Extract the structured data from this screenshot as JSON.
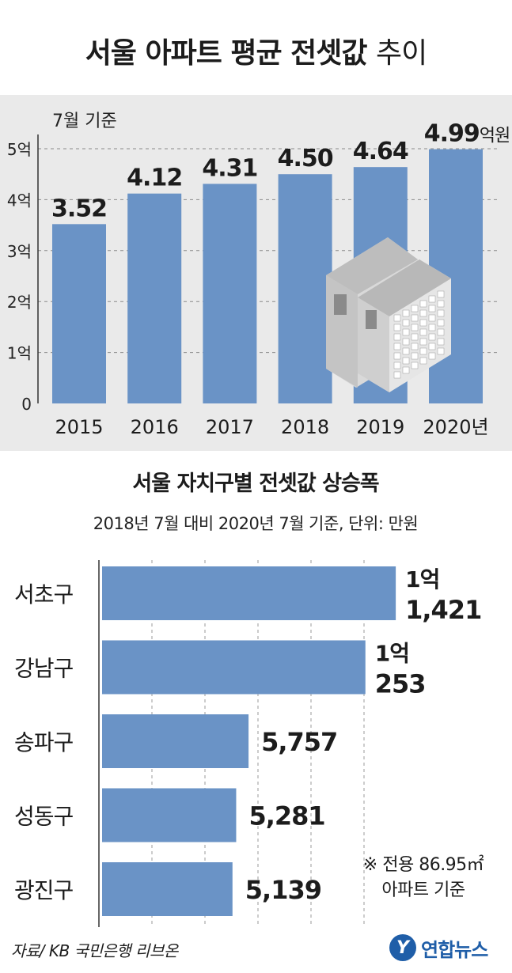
{
  "title": {
    "main": "서울 아파트 평균 전셋값",
    "suffix": "추이"
  },
  "chart_data": [
    {
      "type": "bar",
      "note": "7월 기준",
      "categories": [
        "2015",
        "2016",
        "2017",
        "2018",
        "2019",
        "2020년"
      ],
      "values": [
        3.52,
        4.12,
        4.31,
        4.5,
        4.64,
        4.99
      ],
      "value_labels": [
        "3.52",
        "4.12",
        "4.31",
        "4.50",
        "4.64",
        "4.99"
      ],
      "last_value_unit": "억원",
      "ytick_labels": [
        "0",
        "1억",
        "2억",
        "3억",
        "4억",
        "5억"
      ],
      "ylim": [
        0,
        5
      ],
      "bar_color": "#6a93c6",
      "grid": true
    },
    {
      "type": "bar",
      "orientation": "horizontal",
      "title": "서울 자치구별 전셋값 상승폭",
      "subtitle": "2018년 7월 대비 2020년 7월 기준, 단위: 만원",
      "categories": [
        "서초구",
        "강남구",
        "송파구",
        "성동구",
        "광진구"
      ],
      "values": [
        11421,
        10253,
        5757,
        5281,
        5139
      ],
      "value_labels": [
        [
          "1억",
          "1,421"
        ],
        [
          "1억",
          "253"
        ],
        [
          "5,757"
        ],
        [
          "5,281"
        ],
        [
          "5,139"
        ]
      ],
      "xlim": [
        0,
        11600
      ],
      "bar_color": "#6a93c6",
      "grid": true
    }
  ],
  "note": {
    "line1": "※ 전용 86.95㎡",
    "line2": "아파트 기준"
  },
  "source": "자료/ KB 국민은행 리브온",
  "brand": {
    "logo_letter": "Y",
    "name": "연합뉴스"
  },
  "colors": {
    "bar": "#6a93c6",
    "panel_bg": "#eaeaea",
    "brand": "#1f5ea8"
  }
}
